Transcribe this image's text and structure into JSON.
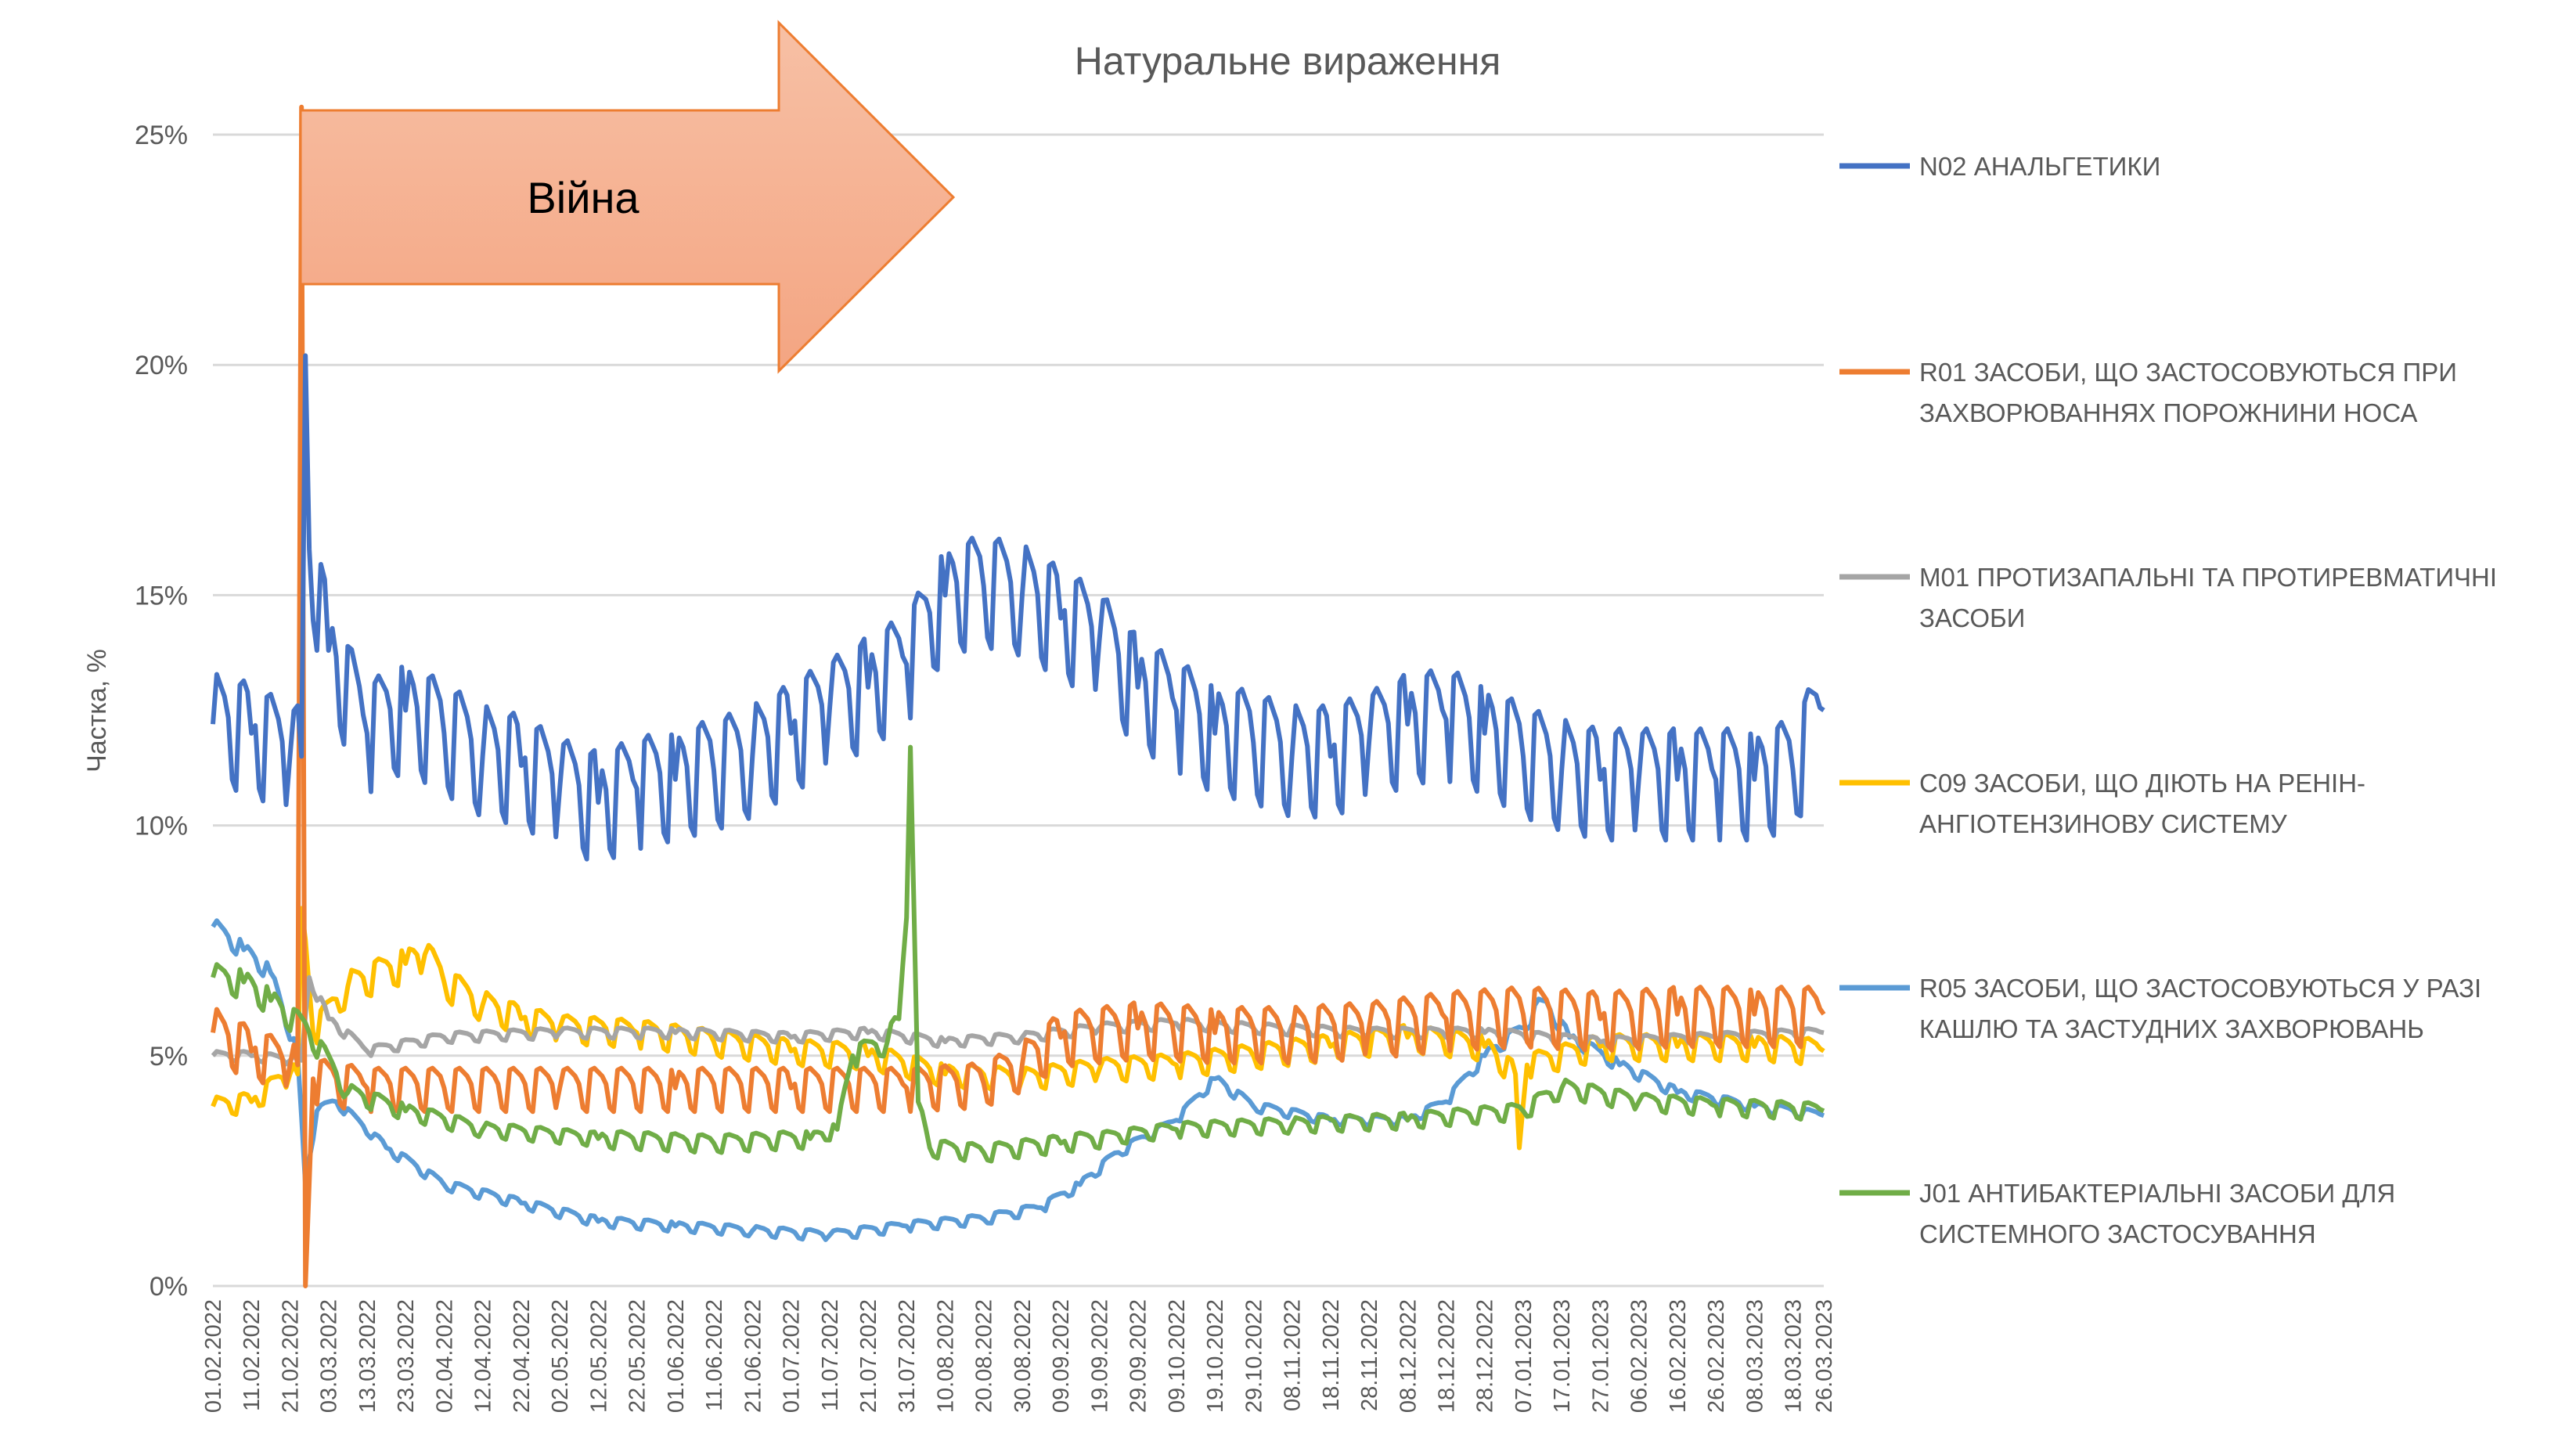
{
  "chart_data": {
    "type": "line",
    "title": "Натуральне вираження",
    "xlabel": "",
    "ylabel": "Частка, %",
    "ylim": [
      0,
      25
    ],
    "yticks": [
      "0%",
      "5%",
      "10%",
      "15%",
      "20%",
      "25%"
    ],
    "ytick_values": [
      0,
      5,
      10,
      15,
      20,
      25
    ],
    "x_unit": "days since 01.02.2022",
    "xlim": [
      0,
      418
    ],
    "xticks": [
      "01.02.2022",
      "11.02.2022",
      "21.02.2022",
      "03.03.2022",
      "13.03.2022",
      "23.03.2022",
      "02.04.2022",
      "12.04.2022",
      "22.04.2022",
      "02.05.2022",
      "12.05.2022",
      "22.05.2022",
      "01.06.2022",
      "11.06.2022",
      "21.06.2022",
      "01.07.2022",
      "11.07.2022",
      "21.07.2022",
      "31.07.2022",
      "10.08.2022",
      "20.08.2022",
      "30.08.2022",
      "09.09.2022",
      "19.09.2022",
      "29.09.2022",
      "09.10.2022",
      "19.10.2022",
      "29.10.2022",
      "08.11.2022",
      "18.11.2022",
      "28.11.2022",
      "08.12.2022",
      "18.12.2022",
      "28.12.2022",
      "07.01.2023",
      "17.01.2023",
      "27.01.2023",
      "06.02.2023",
      "16.02.2023",
      "26.02.2023",
      "08.03.2023",
      "18.03.2023",
      "26.03.2023"
    ],
    "xtick_days": [
      0,
      10,
      20,
      30,
      40,
      50,
      60,
      70,
      80,
      90,
      100,
      110,
      120,
      130,
      140,
      150,
      160,
      170,
      180,
      190,
      200,
      210,
      220,
      230,
      240,
      250,
      260,
      270,
      280,
      290,
      300,
      310,
      320,
      330,
      340,
      350,
      360,
      370,
      380,
      390,
      400,
      410,
      418
    ],
    "grid": true,
    "legend_position": "right",
    "annotation": {
      "label": "Війна",
      "start_day": 23
    },
    "series": [
      {
        "name": "N02 АНАЛЬГЕТИКИ",
        "legend_lines": [
          "N02 АНАЛЬГЕТИКИ"
        ],
        "color": "#4472C4",
        "weekly_amplitude": 1.1,
        "points": [
          [
            0,
            12.2
          ],
          [
            10,
            12
          ],
          [
            20,
            11.5
          ],
          [
            23,
            11.5
          ],
          [
            24,
            20.2
          ],
          [
            25,
            16
          ],
          [
            30,
            13.8
          ],
          [
            40,
            12
          ],
          [
            50,
            12.5
          ],
          [
            60,
            12
          ],
          [
            70,
            11.5
          ],
          [
            80,
            11.3
          ],
          [
            90,
            10.8
          ],
          [
            100,
            10.5
          ],
          [
            110,
            10.8
          ],
          [
            120,
            11
          ],
          [
            130,
            11.2
          ],
          [
            140,
            11.5
          ],
          [
            150,
            12
          ],
          [
            160,
            12.5
          ],
          [
            170,
            13
          ],
          [
            180,
            13.5
          ],
          [
            190,
            15
          ],
          [
            200,
            15.2
          ],
          [
            210,
            15
          ],
          [
            220,
            14.5
          ],
          [
            230,
            14
          ],
          [
            240,
            13
          ],
          [
            250,
            12.5
          ],
          [
            260,
            12
          ],
          [
            270,
            11.8
          ],
          [
            280,
            11.5
          ],
          [
            290,
            11.5
          ],
          [
            300,
            11.8
          ],
          [
            310,
            12.2
          ],
          [
            320,
            12.3
          ],
          [
            330,
            12
          ],
          [
            340,
            11.5
          ],
          [
            350,
            11.2
          ],
          [
            360,
            11
          ],
          [
            370,
            11
          ],
          [
            380,
            11
          ],
          [
            390,
            11
          ],
          [
            400,
            11
          ],
          [
            410,
            11.2
          ],
          [
            418,
            12.5
          ]
        ]
      },
      {
        "name": "R01 ЗАСОБИ, ЩО ЗАСТОСОВУЮТЬСЯ ПРИ ЗАХВОРЮВАННЯХ ПОРОЖНИНИ НОСА",
        "legend_lines": [
          "R01 ЗАСОБИ, ЩО ЗАСТОСОВУЮТЬСЯ ПРИ",
          "ЗАХВОРЮВАННЯХ ПОРОЖНИНИ НОСА"
        ],
        "color": "#ED7D31",
        "weekly_amplitude": 0.8,
        "points": [
          [
            0,
            5.5
          ],
          [
            10,
            5.1
          ],
          [
            20,
            4.8
          ],
          [
            22,
            4.8
          ],
          [
            23,
            25.6
          ],
          [
            24,
            0
          ],
          [
            26,
            4.5
          ],
          [
            40,
            4.3
          ],
          [
            60,
            4.3
          ],
          [
            90,
            4.3
          ],
          [
            120,
            4.3
          ],
          [
            150,
            4.3
          ],
          [
            180,
            4.3
          ],
          [
            200,
            4.4
          ],
          [
            210,
            4.8
          ],
          [
            220,
            5.4
          ],
          [
            240,
            5.6
          ],
          [
            260,
            5.5
          ],
          [
            280,
            5.5
          ],
          [
            300,
            5.6
          ],
          [
            320,
            5.8
          ],
          [
            340,
            5.9
          ],
          [
            360,
            5.8
          ],
          [
            380,
            5.9
          ],
          [
            400,
            5.9
          ],
          [
            418,
            5.9
          ]
        ]
      },
      {
        "name": "M01 ПРОТИЗАПАЛЬНІ ТА ПРОТИРЕВМАТИЧНІ ЗАСОБИ",
        "legend_lines": [
          "M01 ПРОТИЗАПАЛЬНІ ТА ПРОТИРЕВМАТИЧНІ",
          "ЗАСОБИ"
        ],
        "color": "#A5A5A5",
        "weekly_amplitude": 0.15,
        "points": [
          [
            0,
            5
          ],
          [
            10,
            5
          ],
          [
            20,
            4.9
          ],
          [
            23,
            4.9
          ],
          [
            25,
            6.7
          ],
          [
            30,
            5.8
          ],
          [
            40,
            5.1
          ],
          [
            60,
            5.4
          ],
          [
            90,
            5.5
          ],
          [
            120,
            5.5
          ],
          [
            150,
            5.4
          ],
          [
            170,
            5.5
          ],
          [
            190,
            5.3
          ],
          [
            210,
            5.4
          ],
          [
            230,
            5.6
          ],
          [
            250,
            5.7
          ],
          [
            270,
            5.6
          ],
          [
            300,
            5.5
          ],
          [
            330,
            5.5
          ],
          [
            360,
            5.3
          ],
          [
            390,
            5.4
          ],
          [
            418,
            5.5
          ]
        ]
      },
      {
        "name": "C09 ЗАСОБИ, ЩО ДІЮТЬ НА РЕНІН-АНГІОТЕНЗИНОВУ СИСТЕМУ",
        "legend_lines": [
          "C09 ЗАСОБИ, ЩО ДІЮТЬ НА РЕНІН-",
          "АНГІОТЕНЗИНОВУ СИСТЕМУ"
        ],
        "color": "#FFC000",
        "weekly_amplitude": 0.4,
        "points": [
          [
            0,
            3.9
          ],
          [
            10,
            4
          ],
          [
            20,
            4.6
          ],
          [
            22,
            4.6
          ],
          [
            23,
            8.2
          ],
          [
            26,
            5.5
          ],
          [
            35,
            6.5
          ],
          [
            50,
            7
          ],
          [
            55,
            7.2
          ],
          [
            60,
            6.6
          ],
          [
            70,
            6.1
          ],
          [
            80,
            5.8
          ],
          [
            90,
            5.6
          ],
          [
            110,
            5.5
          ],
          [
            130,
            5.3
          ],
          [
            150,
            5.1
          ],
          [
            170,
            5
          ],
          [
            190,
            4.6
          ],
          [
            210,
            4.5
          ],
          [
            230,
            4.7
          ],
          [
            250,
            4.8
          ],
          [
            270,
            5
          ],
          [
            290,
            5.2
          ],
          [
            310,
            5.4
          ],
          [
            330,
            5.2
          ],
          [
            338,
            4.6
          ],
          [
            339,
            3
          ],
          [
            341,
            4.8
          ],
          [
            360,
            5.2
          ],
          [
            380,
            5.2
          ],
          [
            400,
            5.2
          ],
          [
            418,
            5.1
          ]
        ]
      },
      {
        "name": "R05 ЗАСОБИ, ЩО ЗАСТОСОВУЮТЬСЯ У РАЗІ КАШЛЮ ТА ЗАСТУДНИХ ЗАХВОРЮВАНЬ",
        "legend_lines": [
          "R05 ЗАСОБИ, ЩО ЗАСТОСОВУЮТЬСЯ У РАЗІ",
          "КАШЛЮ ТА ЗАСТУДНИХ ЗАХВОРЮВАНЬ"
        ],
        "color": "#5B9BD5",
        "weekly_amplitude": 0.2,
        "points": [
          [
            0,
            7.8
          ],
          [
            8,
            7.3
          ],
          [
            15,
            6.8
          ],
          [
            22,
            5
          ],
          [
            24,
            2.2
          ],
          [
            27,
            3.8
          ],
          [
            32,
            4
          ],
          [
            45,
            3
          ],
          [
            60,
            2.2
          ],
          [
            80,
            1.8
          ],
          [
            100,
            1.4
          ],
          [
            120,
            1.3
          ],
          [
            140,
            1.2
          ],
          [
            160,
            1.1
          ],
          [
            180,
            1.3
          ],
          [
            200,
            1.45
          ],
          [
            215,
            1.7
          ],
          [
            225,
            2.2
          ],
          [
            235,
            2.9
          ],
          [
            250,
            3.6
          ],
          [
            260,
            4.5
          ],
          [
            270,
            3.9
          ],
          [
            290,
            3.6
          ],
          [
            310,
            3.6
          ],
          [
            320,
            4
          ],
          [
            330,
            5
          ],
          [
            340,
            5.6
          ],
          [
            345,
            6.2
          ],
          [
            352,
            5.4
          ],
          [
            365,
            4.8
          ],
          [
            380,
            4.2
          ],
          [
            400,
            3.9
          ],
          [
            418,
            3.7
          ]
        ]
      },
      {
        "name": "J01 АНТИБАКТЕРІАЛЬНІ ЗАСОБИ ДЛЯ СИСТЕМНОГО ЗАСТОСУВАННЯ",
        "legend_lines": [
          "J01 АНТИБАКТЕРІАЛЬНІ ЗАСОБИ ДЛЯ",
          "СИСТЕМНОГО ЗАСТОСУВАННЯ"
        ],
        "color": "#70AD47",
        "weekly_amplitude": 0.35,
        "points": [
          [
            0,
            6.7
          ],
          [
            8,
            6.6
          ],
          [
            15,
            6.2
          ],
          [
            25,
            5.5
          ],
          [
            35,
            4.2
          ],
          [
            50,
            3.8
          ],
          [
            70,
            3.4
          ],
          [
            100,
            3.2
          ],
          [
            130,
            3.1
          ],
          [
            155,
            3.2
          ],
          [
            162,
            3.4
          ],
          [
            166,
            5
          ],
          [
            175,
            5.3
          ],
          [
            178,
            5.8
          ],
          [
            180,
            8
          ],
          [
            181,
            11.7
          ],
          [
            183,
            4
          ],
          [
            186,
            3
          ],
          [
            200,
            2.9
          ],
          [
            220,
            3.1
          ],
          [
            250,
            3.4
          ],
          [
            280,
            3.5
          ],
          [
            310,
            3.6
          ],
          [
            340,
            3.8
          ],
          [
            350,
            4.3
          ],
          [
            370,
            4
          ],
          [
            390,
            3.9
          ],
          [
            418,
            3.8
          ]
        ]
      }
    ]
  }
}
